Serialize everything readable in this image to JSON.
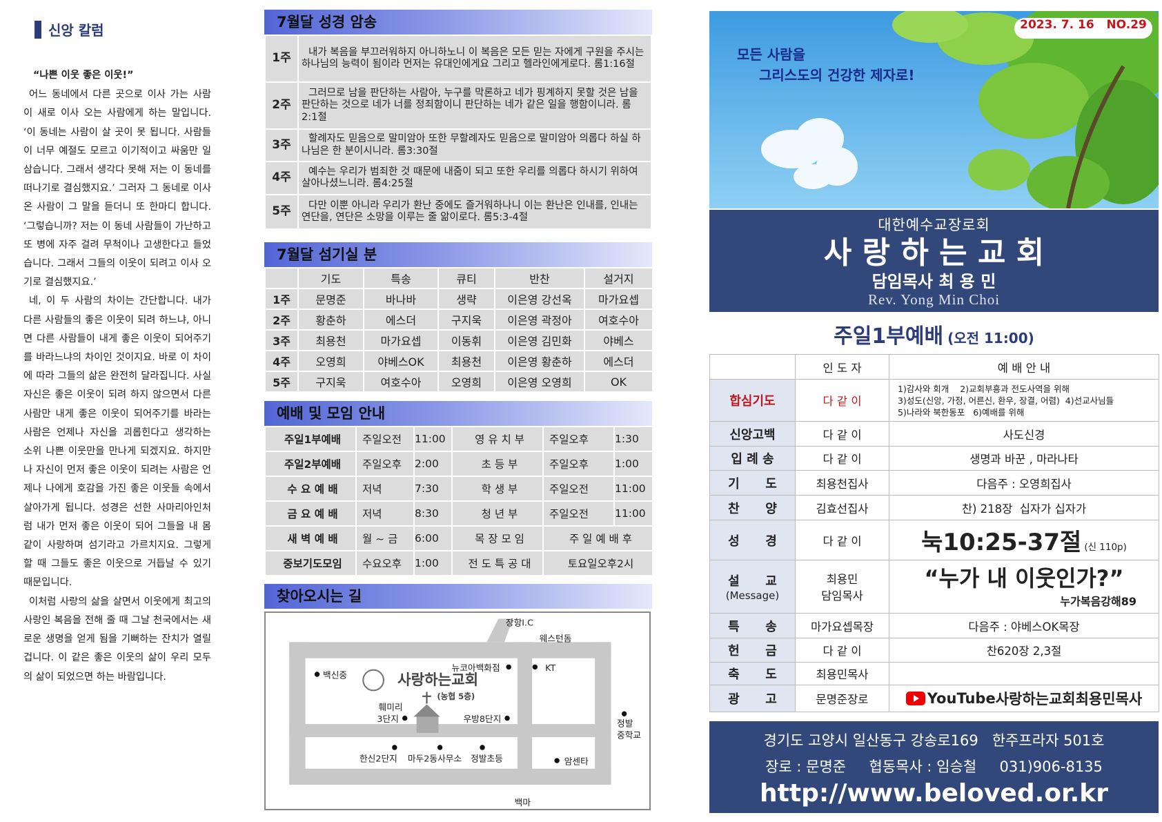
{
  "column": {
    "title": "신앙 칼럼",
    "heading": "“나쁜 이웃 좋은 이웃!”",
    "paragraphs": [
      "어느 동네에서 다른 곳으로 이사 가는 사람이 새로 이사 오는 사람에게 하는 말입니다. ‘이 동네는 사람이 살 곳이 못 됩니다. 사람들이 너무 예절도 모르고 이기적이고 싸움만 일삼습니다. 그래서 생각다 못해 저는 이 동네를 떠나기로 결심했지요.’ 그러자 그 동네로 이사온 사람이 그 말을 듣더니 또 한마디 합니다. ‘그렇습니까? 저는 이 동네 사람들이 가난하고 또 병에 자주 걸려 무척이나 고생한다고 들었습니다. 그래서 그들의 이웃이 되려고 이사 오기로 결심했지요.’",
      "네, 이 두 사람의 차이는 간단합니다. 내가 다른 사람들의 좋은 이웃이 되려 하느냐, 아니면 다른 사람들이 내게 좋은 이웃이 되어주기를 바라느냐의 차이인 것이지요. 바로 이 차이에 따라 그들의 삶은 완전히 달라집니다. 사실 자신은 좋은 이웃이 되려 하지 않으면서 다른 사람만 내게 좋은 이웃이 되어주기를 바라는 사람은 언제나 자신을 괴롭힌다고 생각하는 소위 나쁜 이웃만을 만나게 되겠지요. 하지만 나 자신이 먼저 좋은 이웃이 되려는 사람은 언제나 나에게 호감을 가진 좋은 이웃들 속에서 살아가게 됩니다. 성경은 선한 사마리아인처럼 내가 먼저 좋은 이웃이 되어 그들을 내 몸같이 사랑하며 섬기라고 가르치지요. 그렇게 할 때 그들도 좋은 이웃으로 거듭날 수 있기 때문입니다.",
      "이처럼 사랑의 삶을 살면서 이웃에게 최고의 사랑인 복음을 전해 줄 때 그날 천국에서는 새로운 생명을 얻게 됨을 기뻐하는 잔치가 열릴 겁니다. 이 같은 좋은 이웃의 삶이 우리 모두의 삶이 되었으면 하는 바람입니다."
    ]
  },
  "memory_verses": {
    "title": "7월달 성경 암송",
    "rows": [
      {
        "week": "1주",
        "text": "내가 복음을 부끄러워하지 아니하노니 이 복음은 모든 믿는 자에게 구원을 주시는 하나님의 능력이 됨이라 먼저는 유대인에게요 그리고 헬라인에게로다.  롬1:16절"
      },
      {
        "week": "2주",
        "text": "그러므로 남을 판단하는 사람아, 누구를 막론하고 네가 핑계하지 못할 것은 남을 판단하는 것으로 네가 너를 정죄함이니 판단하는 네가 같은 일을 행함이니라.  롬2:1절"
      },
      {
        "week": "3주",
        "text": "할례자도 믿음으로 말미암아 또한 무할례자도 믿음으로 말미암아 의롭다 하실 하나님은 한 분이시니라.   롬3:30절"
      },
      {
        "week": "4주",
        "text": "예수는 우리가 범죄한 것 때문에 내줌이 되고 또한 우리를 의롭다 하시기 위하여 살아나셨느니라.   롬4:25절"
      },
      {
        "week": "5주",
        "text": "다만 이뿐 아니라 우리가 환난 중에도 즐거워하나니 이는 환난은 인내를, 인내는 연단을, 연단은 소망을 이루는 줄 앎이로다.  롬5:3-4절"
      }
    ]
  },
  "servants": {
    "title": "7월달 섬기실 분",
    "header": [
      "기도",
      "특송",
      "큐티",
      "반찬",
      "설거지"
    ],
    "rows": [
      [
        "1주",
        "문명준",
        "바나바",
        "생략",
        "이은영 강선옥",
        "마가요셉"
      ],
      [
        "2주",
        "황춘하",
        "에스더",
        "구지욱",
        "이은영 곽정아",
        "여호수아"
      ],
      [
        "3주",
        "최용천",
        "마가요셉",
        "이동휘",
        "이은영 김민화",
        "야베스"
      ],
      [
        "4주",
        "오영희",
        "야베스OK",
        "최용천",
        "이은영 황춘하",
        "에스더"
      ],
      [
        "5주",
        "구지욱",
        "여호수아",
        "오영희",
        "이은영 오영희",
        "OK"
      ]
    ]
  },
  "meetings": {
    "title": "예배 및 모임 안내",
    "rows": [
      [
        "주일1부예배",
        "주일오전",
        "11:00",
        "영 유 치 부",
        "주일오후",
        "1:30"
      ],
      [
        "주일2부예배",
        "주일오후",
        "2:00",
        "초 등 부",
        "주일오후",
        "1:00"
      ],
      [
        "수 요 예 배",
        "저녁",
        "7:30",
        "학 생 부",
        "주일오전",
        "11:00"
      ],
      [
        "금 요 예 배",
        "저녁",
        "8:30",
        "청 년 부",
        "주일오전",
        "11:00"
      ],
      [
        "새 벽 예 배",
        "월 ~ 금",
        "6:00",
        "목 장 모 임",
        "주 일 예 배 후"
      ],
      [
        "중보기도모임",
        "수요오후",
        "1:00",
        "전 도 특 공 대",
        "토요일오후2시"
      ]
    ]
  },
  "directions": {
    "title": "찾아오시는 길",
    "church_name": "사랑하는교회",
    "church_floor": "(농협 5층)",
    "labels": [
      "장항I.C",
      "웨스턴돔",
      "뉴코아백화점",
      "KT",
      "백신중",
      "훼미리",
      "3단지",
      "우방8단지",
      "정발",
      "중학교",
      "한신2단지",
      "마두2동사무소",
      "정발초등",
      "암센타",
      "백마"
    ]
  },
  "header": {
    "date": "2023. 7. 16",
    "issue": "NO.29",
    "slogan": [
      "모든 사람을",
      "그리스도의 건강한 제자로!"
    ],
    "denomination": "대한예수교장로회",
    "church": "사 랑 하 는 교 회",
    "pastor": "담임목사 최 용 민",
    "pastor_en": "Rev. Yong Min Choi"
  },
  "order": {
    "title": "주일1부예배",
    "time": "(오전 11:00)",
    "header": [
      "인 도 자",
      "예 배 안 내"
    ],
    "rows": [
      {
        "item": [
          "합심기도"
        ],
        "leader": [
          "다 같 이"
        ],
        "content": [
          "1)감사와 회개    2)교회부흥과 전도사역을 위해",
          "3)성도(신앙, 가정, 어른신, 환우, 장결, 어렴)  4)선교사님들",
          "5)나라와 북한동포   6)예배를 위해"
        ]
      },
      {
        "item": [
          "신앙고백"
        ],
        "leader": [
          "다 같 이"
        ],
        "content": [
          "사도신경"
        ]
      },
      {
        "item": [
          "입 례 송"
        ],
        "leader": [
          "다 같 이"
        ],
        "content": [
          "생명과 바꾼 , 마라나타"
        ]
      },
      {
        "item": [
          "기      도"
        ],
        "leader": [
          "최용천집사"
        ],
        "content": [
          "다음주 : 오영희집사"
        ]
      },
      {
        "item": [
          "찬      양"
        ],
        "leader": [
          "김효선집사"
        ],
        "content": [
          "찬) 218장  십자가 십자가"
        ]
      },
      {
        "item": [
          "성      경"
        ],
        "leader": [
          "다 같 이"
        ],
        "content": [
          "눅10:25-37절",
          "(신 110p)"
        ]
      },
      {
        "item": [
          "설      교",
          "(Message)"
        ],
        "leader": [
          "최용민",
          "담임목사"
        ],
        "content": [
          "“누가 내 이웃인가?”",
          "누가복음강해89"
        ]
      },
      {
        "item": [
          "특      송"
        ],
        "leader": [
          "마가요셉목장"
        ],
        "content": [
          "다음주 : 야베스OK목장"
        ]
      },
      {
        "item": [
          "헌      금"
        ],
        "leader": [
          "다 같 이"
        ],
        "content": [
          "찬620장 2,3절"
        ]
      },
      {
        "item": [
          "축      도"
        ],
        "leader": [
          "최용민목사"
        ]
      },
      {
        "item": [
          "광      고"
        ],
        "leader": [
          "문명준장로"
        ],
        "content": [
          "YouTube",
          "사랑하는교회최용민목사"
        ]
      }
    ]
  },
  "footer": {
    "address": "경기도 고양시 일산동구 강송로169   한주프라자 501호",
    "contacts": "장로 : 문명준     협동목사 : 임승철     031)906-8135",
    "url": "http://www.beloved.or.kr"
  }
}
